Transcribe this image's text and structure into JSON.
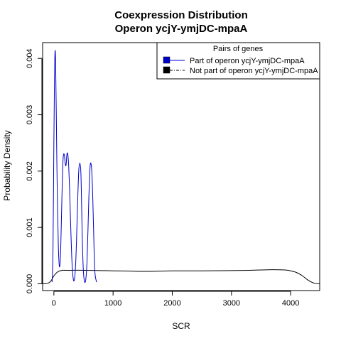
{
  "chart_data": {
    "type": "line",
    "title": "Coexpression Distribution",
    "subtitle": "Operon ycjY-ymjDC-mpaA",
    "xlabel": "SCR",
    "ylabel": "Probability Density",
    "xlim": [
      -190,
      4490
    ],
    "ylim": [
      -0.00012,
      0.00428
    ],
    "x_ticks": [
      0,
      1000,
      2000,
      3000,
      4000
    ],
    "x_tick_labels": [
      "0",
      "1000",
      "2000",
      "3000",
      "4000"
    ],
    "y_ticks": [
      0.0,
      0.001,
      0.002,
      0.003,
      0.004
    ],
    "y_tick_labels": [
      "0.000",
      "0.001",
      "0.002",
      "0.003",
      "0.004"
    ],
    "grid": false,
    "legend": {
      "title": "Pairs of genes",
      "position": "top-right",
      "entries": [
        {
          "label": "Part of operon ycjY-ymjDC-mpaA",
          "color": "#0000cc",
          "line": "solid"
        },
        {
          "label": "Not part of operon ycjY-ymjDC-mpaA",
          "color": "#000000",
          "line": "dashdot"
        }
      ]
    },
    "series": [
      {
        "name": "Part of operon ycjY-ymjDC-mpaA",
        "color": "#0000cc",
        "x": [
          -30,
          -15,
          0,
          10,
          20,
          30,
          40,
          55,
          75,
          95,
          115,
          135,
          155,
          175,
          190,
          205,
          220,
          235,
          250,
          265,
          285,
          310,
          340,
          370,
          400,
          420,
          440,
          455,
          465,
          480,
          500,
          530,
          560,
          590,
          610,
          625,
          640,
          655,
          670,
          690,
          720
        ],
        "y": [
          3e-05,
          0.0006,
          0.0025,
          0.0036,
          0.00413,
          0.0039,
          0.0031,
          0.0018,
          0.0007,
          0.0003,
          0.0006,
          0.0015,
          0.0022,
          0.0023,
          0.00215,
          0.0021,
          0.0023,
          0.0023,
          0.0021,
          0.0017,
          0.001,
          0.0003,
          5e-05,
          0.0004,
          0.0014,
          0.002,
          0.00214,
          0.002,
          0.0016,
          0.0008,
          0.0002,
          3e-05,
          0.0004,
          0.0015,
          0.00205,
          0.00214,
          0.002,
          0.0016,
          0.001,
          0.00025,
          3e-05
        ]
      },
      {
        "name": "Not part of operon ycjY-ymjDC-mpaA",
        "color": "#000000",
        "x": [
          -190,
          -100,
          -50,
          0,
          50,
          100,
          150,
          200,
          300,
          500,
          800,
          1000,
          1300,
          1500,
          1800,
          2000,
          2500,
          3000,
          3300,
          3500,
          3700,
          3900,
          4000,
          4100,
          4200,
          4300,
          4400,
          4490
        ],
        "y": [
          0.0,
          1e-05,
          5e-05,
          0.00014,
          0.0002,
          0.00023,
          0.00024,
          0.00024,
          0.00024,
          0.00024,
          0.000235,
          0.00023,
          0.000225,
          0.00022,
          0.000225,
          0.00023,
          0.00023,
          0.000235,
          0.00024,
          0.000245,
          0.00025,
          0.000245,
          0.00023,
          0.0002,
          0.00014,
          6e-05,
          1e-05,
          0.0
        ]
      }
    ]
  }
}
